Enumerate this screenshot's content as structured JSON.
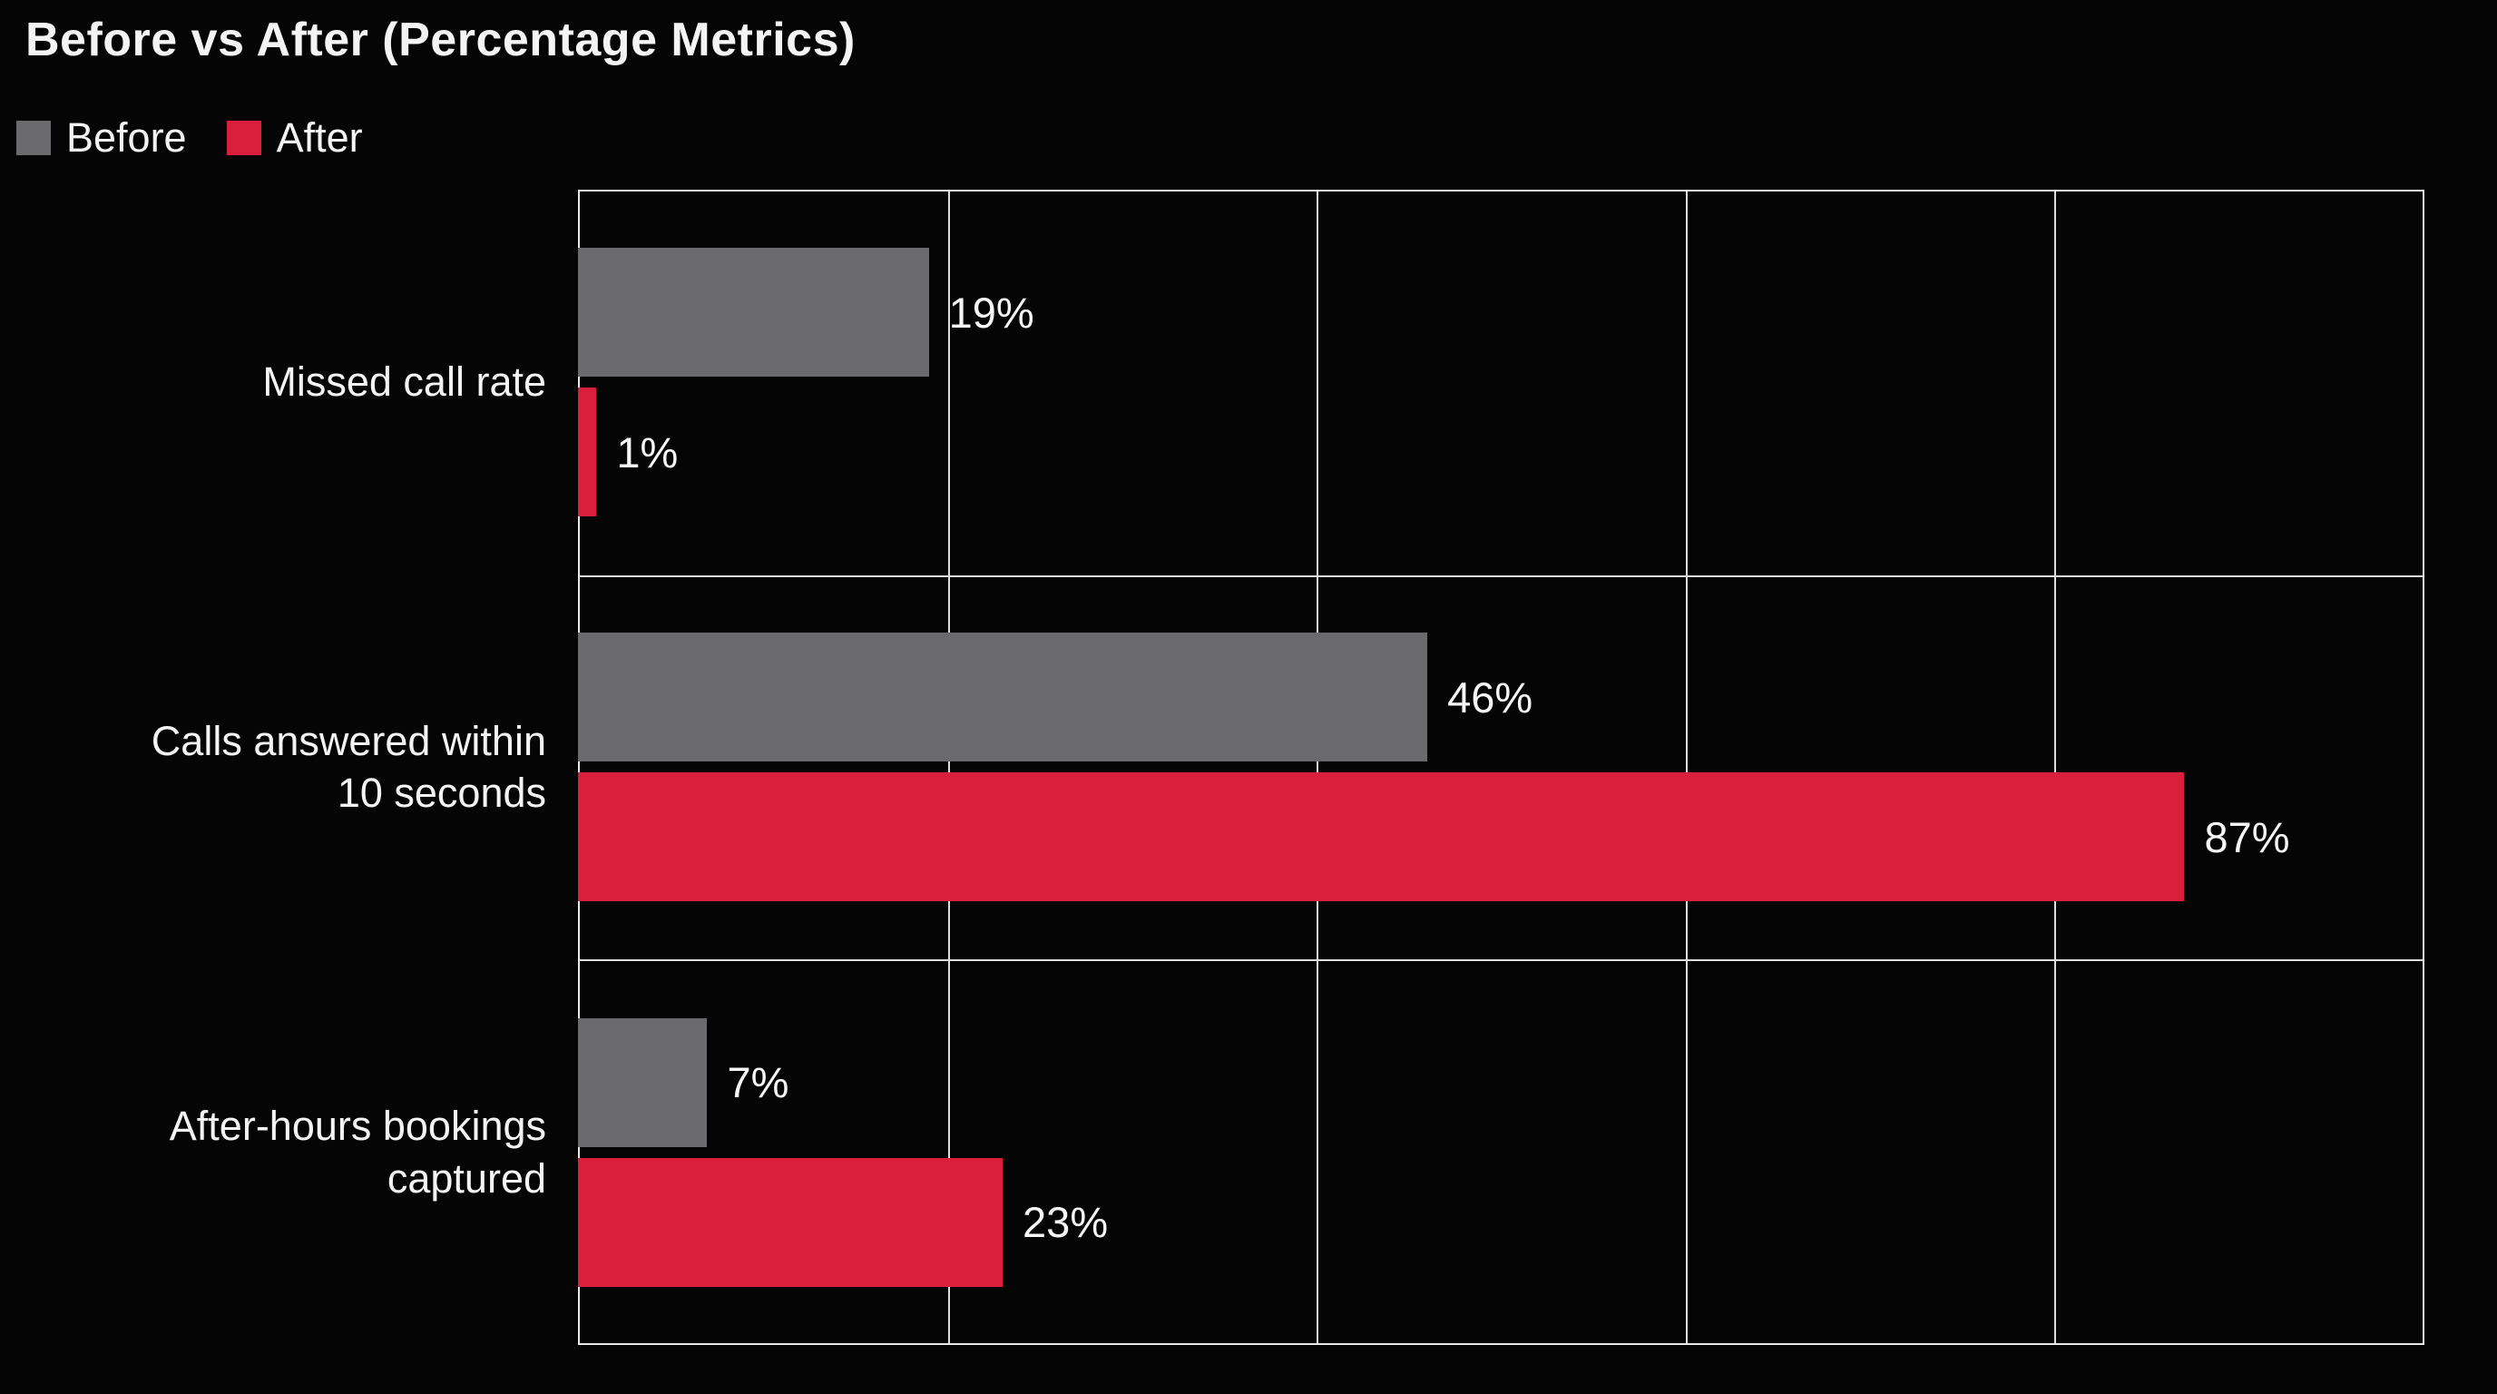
{
  "colors": {
    "background": "#050505",
    "before_bar": "#6b6b6d",
    "after_bar": "#d81f3c",
    "grid": "#dedede",
    "text": "#f4f4f4"
  },
  "chart_data": {
    "type": "bar",
    "orientation": "horizontal",
    "title": "Before vs After (Percentage Metrics)",
    "categories": [
      "Missed call rate",
      "Calls answered within 10 seconds",
      "After-hours bookings captured"
    ],
    "category_lines": [
      [
        "Missed call rate"
      ],
      [
        "Calls answered within",
        "10 seconds"
      ],
      [
        "After-hours bookings",
        "captured"
      ]
    ],
    "series": [
      {
        "name": "Before",
        "color": "#6b6b6d",
        "values": [
          19,
          46,
          7
        ],
        "labels": [
          "19%",
          "46%",
          "7%"
        ]
      },
      {
        "name": "After",
        "color": "#d81f3c",
        "values": [
          1,
          87,
          23
        ],
        "labels": [
          "1%",
          "87%",
          "23%"
        ]
      }
    ],
    "xlabel": "",
    "ylabel": "",
    "xlim": [
      0,
      100
    ],
    "grid_step_pct": 20,
    "grid": "on",
    "legend_position": "top-left",
    "value_label_position": "outside-end"
  }
}
